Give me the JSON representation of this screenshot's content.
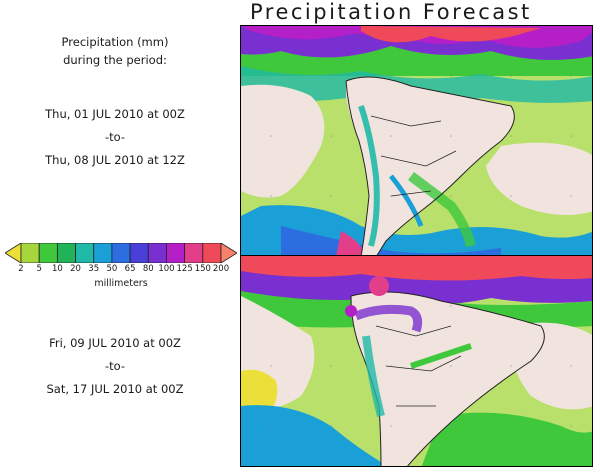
{
  "title": "Precipitation Forecast",
  "caption": {
    "line1": "Precipitation (mm)",
    "line2": "during the period:"
  },
  "periods": [
    {
      "start": "Thu, 01 JUL 2010 at 00Z",
      "to": "-to-",
      "end": "Thu, 08 JUL 2010 at 12Z"
    },
    {
      "start": "Fri, 09 JUL 2010 at 00Z",
      "to": "-to-",
      "end": "Sat, 17 JUL 2010 at 00Z"
    }
  ],
  "legend": {
    "units": "millimeters",
    "ticks": [
      "2",
      "5",
      "10",
      "20",
      "35",
      "50",
      "65",
      "80",
      "100",
      "125",
      "150",
      "200"
    ],
    "colors": [
      "#ecdf3a",
      "#a6d63c",
      "#3fc83c",
      "#22b25a",
      "#1fb9a8",
      "#1aa0d6",
      "#2c6ee0",
      "#4a3fd8",
      "#7a2fd0",
      "#b41fc8",
      "#e33e8a",
      "#f04a5a",
      "#f9806a"
    ]
  },
  "map_colors": {
    "land": "#f1e4df",
    "ocean_light": "#ece8a0",
    "border": "#222222",
    "grid": "#888888"
  }
}
